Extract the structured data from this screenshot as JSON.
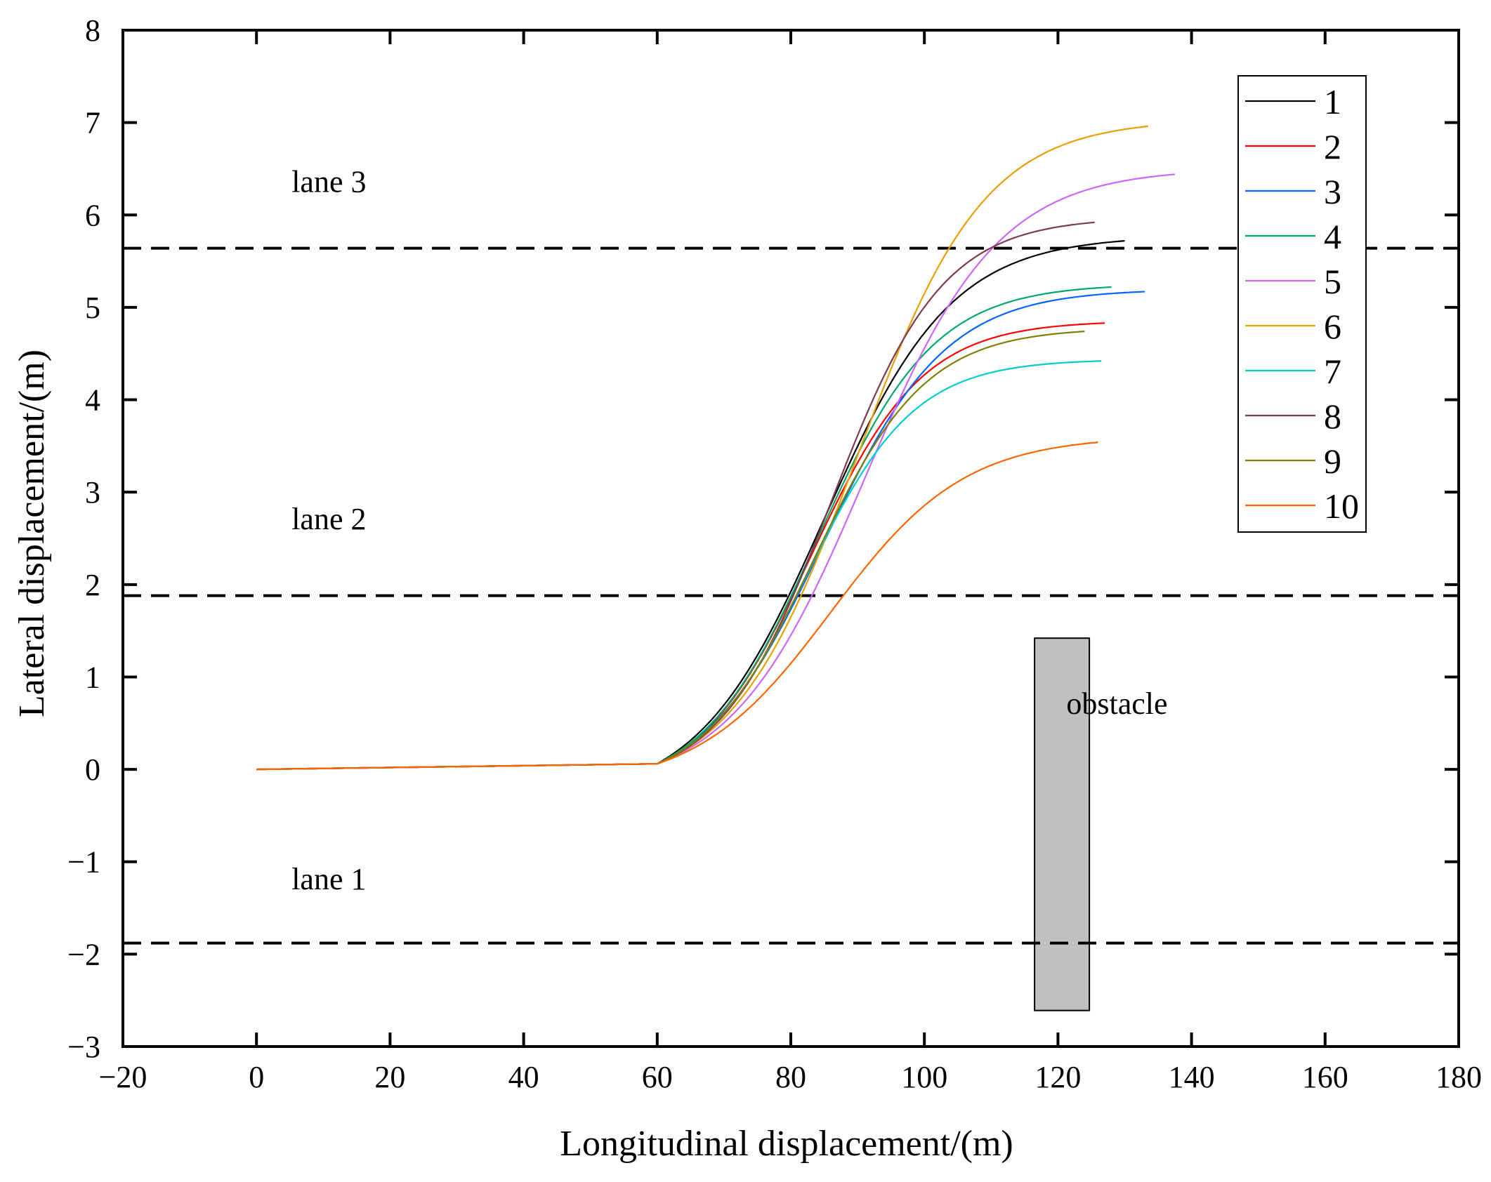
{
  "chart_data": {
    "type": "line",
    "title": "",
    "xlabel": "Longitudinal displacement/(m)",
    "ylabel": "Lateral displacement/(m)",
    "xlim": [
      -20,
      180
    ],
    "ylim": [
      -3,
      8
    ],
    "xticks": [
      -20,
      0,
      20,
      40,
      60,
      80,
      100,
      120,
      140,
      160,
      180
    ],
    "yticks": [
      -3,
      -2,
      -1,
      0,
      1,
      2,
      3,
      4,
      5,
      6,
      7,
      8
    ],
    "grid": false,
    "legend_position": "top-right",
    "lane_lines": [
      {
        "y": 5.64,
        "style": "dashed"
      },
      {
        "y": 1.88,
        "style": "dashed"
      },
      {
        "y": -1.88,
        "style": "dashed"
      }
    ],
    "annotations": [
      {
        "text": "lane 3",
        "x": 0,
        "y": 6.25
      },
      {
        "text": "lane 2",
        "x": 0,
        "y": 2.6
      },
      {
        "text": "lane 1",
        "x": 0,
        "y": -1.3
      },
      {
        "text": "obstacle",
        "x": 116,
        "y": 0.6
      }
    ],
    "obstacle": {
      "x_start": 116.5,
      "x_end": 124.7,
      "y_start": -2.61,
      "y_end": 1.42,
      "color": "#c0c0c0"
    },
    "series": [
      {
        "name": "1",
        "color": "#000000",
        "start_x": 60,
        "end_x": 130,
        "final_y": 5.72,
        "mid_x": 85,
        "steepness": 0.105
      },
      {
        "name": "2",
        "color": "#ff0000",
        "start_x": 60,
        "end_x": 127,
        "final_y": 4.83,
        "mid_x": 83,
        "steepness": 0.12
      },
      {
        "name": "3",
        "color": "#0066ff",
        "start_x": 60,
        "end_x": 133,
        "final_y": 5.17,
        "mid_x": 85,
        "steepness": 0.11
      },
      {
        "name": "4",
        "color": "#00a86b",
        "start_x": 60,
        "end_x": 128,
        "final_y": 5.22,
        "mid_x": 84,
        "steepness": 0.115
      },
      {
        "name": "5",
        "color": "#cc66ff",
        "start_x": 60,
        "end_x": 137.5,
        "final_y": 6.44,
        "mid_x": 91,
        "steepness": 0.1
      },
      {
        "name": "6",
        "color": "#e8a000",
        "start_x": 60,
        "end_x": 133.5,
        "final_y": 6.96,
        "mid_x": 90,
        "steepness": 0.105
      },
      {
        "name": "7",
        "color": "#00cccc",
        "start_x": 60,
        "end_x": 126.5,
        "final_y": 4.42,
        "mid_x": 82.5,
        "steepness": 0.125
      },
      {
        "name": "8",
        "color": "#7a3b4e",
        "start_x": 60,
        "end_x": 125.5,
        "final_y": 5.92,
        "mid_x": 86,
        "steepness": 0.12
      },
      {
        "name": "9",
        "color": "#7f7f00",
        "start_x": 60,
        "end_x": 124,
        "final_y": 4.74,
        "mid_x": 83.5,
        "steepness": 0.12
      },
      {
        "name": "10",
        "color": "#ff6600",
        "start_x": 60,
        "end_x": 126,
        "final_y": 3.54,
        "mid_x": 86,
        "steepness": 0.1
      }
    ],
    "common_initial_segment": {
      "x_start": 0,
      "x_end": 60,
      "y_start": 0,
      "y_end": 0.06
    }
  }
}
